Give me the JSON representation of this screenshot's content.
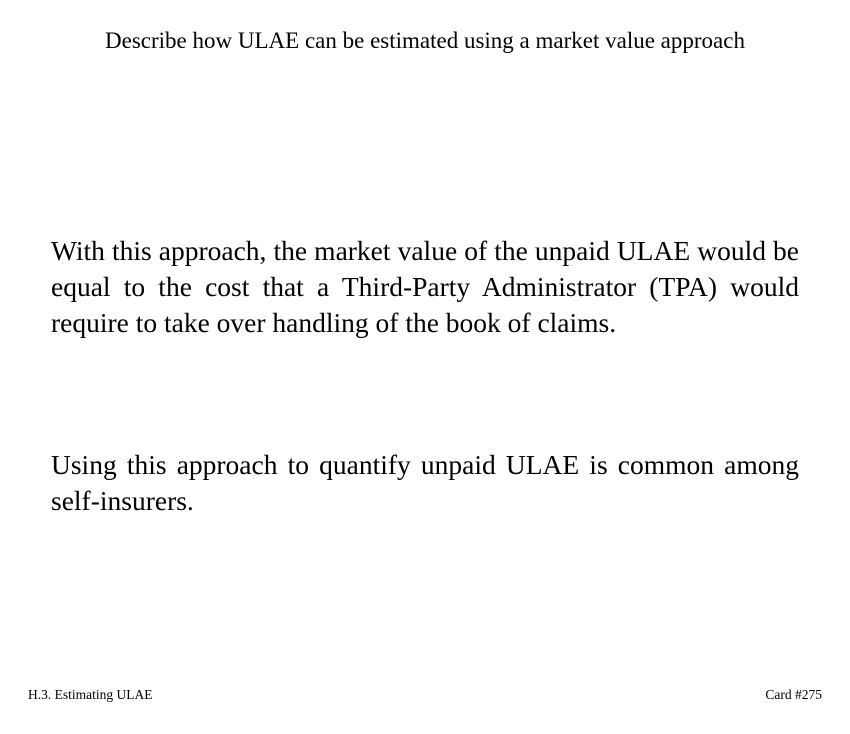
{
  "card": {
    "question": "Describe how ULAE can be estimated using a market value approach",
    "answer": [
      "With this approach, the market value of the unpaid ULAE would be equal to the cost that a Third-Party Administrator (TPA) would require to take over handling of the book of claims.",
      "Using this approach to quantify unpaid ULAE is common among self-insurers."
    ],
    "footer": {
      "section": "H.3. Estimating ULAE",
      "card_number": "Card #275"
    }
  }
}
